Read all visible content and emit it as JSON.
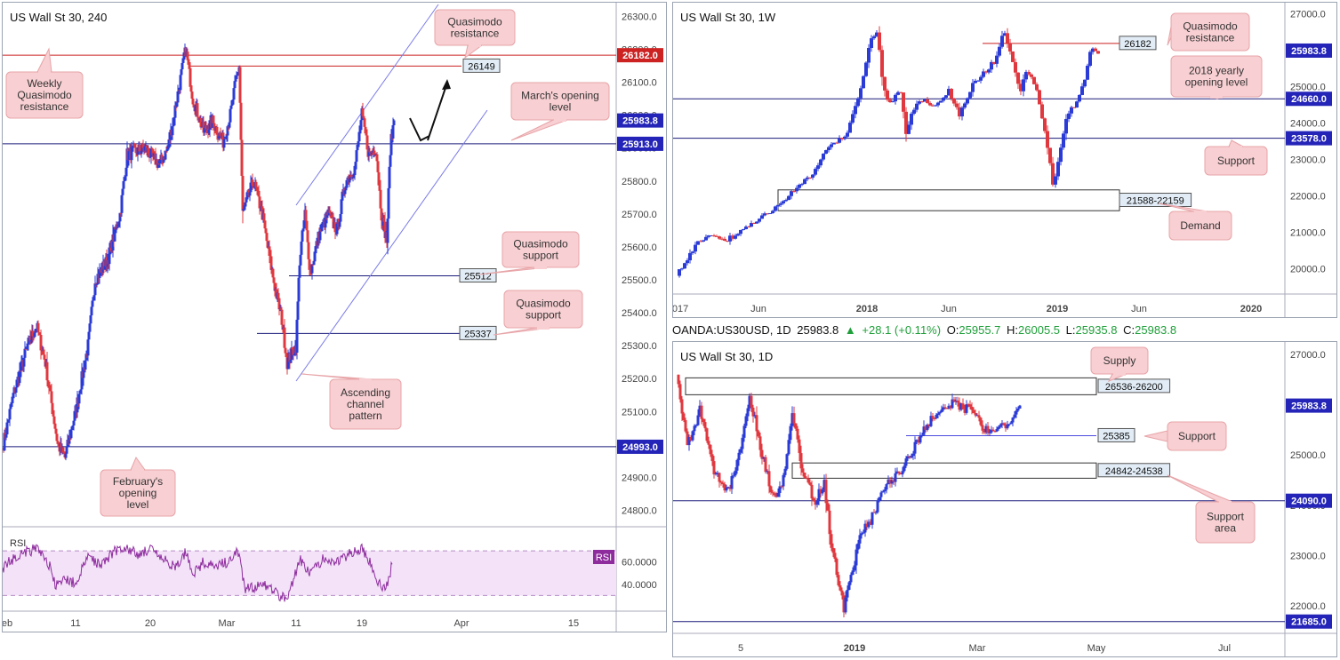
{
  "colors": {
    "up": "#2b3bd6",
    "down": "#e0383f",
    "callout_fill": "#f8cfd2",
    "callout_stroke": "#e7a4a8",
    "blue_line": "#2424b8",
    "red_line": "#cc2222",
    "rsi": "#8e2c9e",
    "rsi_band": "#f3e2f8"
  },
  "chart_data": [
    {
      "type": "candlestick",
      "title": "US Wall St 30, 240",
      "ylim": [
        24750,
        26320
      ],
      "y_ticks": [
        "26300.0",
        "26200.0",
        "26100.0",
        "26000.0",
        "25900.0",
        "25800.0",
        "25700.0",
        "25600.0",
        "25500.0",
        "25400.0",
        "25300.0",
        "25200.0",
        "25100.0",
        "25000.0",
        "24900.0",
        "24800.0"
      ],
      "x_ticks": [
        "eb",
        "11",
        "20",
        "Mar",
        "11",
        "19",
        "Apr",
        "15"
      ],
      "price_labels": [
        {
          "text": "26182.0",
          "value": 26182,
          "style": "red"
        },
        {
          "text": "25983.8",
          "value": 25983.8,
          "style": "blue"
        },
        {
          "text": "25913.0",
          "value": 25913,
          "style": "blue"
        },
        {
          "text": "24993.0",
          "value": 24993,
          "style": "blue"
        }
      ],
      "level_labels": [
        {
          "text": "26149",
          "value": 26149
        },
        {
          "text": "25512",
          "value": 25512
        },
        {
          "text": "25337",
          "value": 25337
        }
      ],
      "annotations": [
        {
          "name": "weekly-quasimodo",
          "lines": [
            "Weekly",
            "Quasimodo",
            "resistance"
          ]
        },
        {
          "name": "quasimodo-resistance",
          "lines": [
            "Quasimodo",
            "resistance"
          ]
        },
        {
          "name": "march-opening",
          "lines": [
            "March's opening",
            "level"
          ]
        },
        {
          "name": "quasimodo-support-1",
          "lines": [
            "Quasimodo",
            "support"
          ]
        },
        {
          "name": "quasimodo-support-2",
          "lines": [
            "Quasimodo",
            "support"
          ]
        },
        {
          "name": "ascending-channel",
          "lines": [
            "Ascending",
            "channel",
            "pattern"
          ]
        },
        {
          "name": "february-opening",
          "lines": [
            "February's",
            "opening",
            "level"
          ]
        }
      ],
      "rsi": {
        "label": "RSI",
        "badge": "RSI",
        "y_ticks": [
          "60.0000",
          "40.0000"
        ],
        "upper": 70,
        "lower": 30
      }
    },
    {
      "type": "candlestick",
      "title": "US Wall St 30, 1W",
      "ylim": [
        19300,
        27300
      ],
      "y_ticks": [
        "27000.0",
        "26000.0",
        "25000.0",
        "24000.0",
        "23000.0",
        "22000.0",
        "21000.0",
        "20000.0"
      ],
      "x_ticks": [
        "017",
        "Jun",
        "2018",
        "Jun",
        "2019",
        "Jun",
        "2020"
      ],
      "price_labels": [
        {
          "text": "25983.8",
          "value": 25983.8,
          "style": "blue"
        },
        {
          "text": "24660.0",
          "value": 24660,
          "style": "blue"
        },
        {
          "text": "23578.0",
          "value": 23578,
          "style": "blue"
        }
      ],
      "level_labels": [
        {
          "text": "26182",
          "value": 26182
        },
        {
          "text": "21588-22159",
          "value": 21873
        }
      ],
      "annotations": [
        {
          "name": "quasimodo-resistance",
          "lines": [
            "Quasimodo",
            "resistance"
          ]
        },
        {
          "name": "yearly-opening",
          "lines": [
            "2018 yearly",
            "opening level"
          ]
        },
        {
          "name": "support",
          "lines": [
            "Support"
          ]
        },
        {
          "name": "demand",
          "lines": [
            "Demand"
          ]
        }
      ]
    },
    {
      "type": "candlestick",
      "title": "US Wall St 30, 1D",
      "ylim": [
        21450,
        27250
      ],
      "y_ticks": [
        "27000.0",
        "26000.0",
        "25000.0",
        "24000.0",
        "23000.0",
        "22000.0"
      ],
      "x_ticks": [
        "5",
        "2019",
        "Mar",
        "May",
        "Jul"
      ],
      "price_labels": [
        {
          "text": "25983.8",
          "value": 25983.8,
          "style": "blue"
        },
        {
          "text": "24090.0",
          "value": 24090,
          "style": "blue"
        },
        {
          "text": "21685.0",
          "value": 21685,
          "style": "blue"
        }
      ],
      "level_labels": [
        {
          "text": "26536-26200",
          "value": 26368
        },
        {
          "text": "25385",
          "value": 25385
        },
        {
          "text": "24842-24538",
          "value": 24690
        }
      ],
      "annotations": [
        {
          "name": "supply",
          "lines": [
            "Supply"
          ]
        },
        {
          "name": "support",
          "lines": [
            "Support"
          ]
        },
        {
          "name": "support-area",
          "lines": [
            "Support",
            "area"
          ]
        }
      ]
    }
  ],
  "ohlc_bar": {
    "symbol": "OANDA:US30USD, 1D",
    "price": "25983.8",
    "arrow": "▲",
    "change": "+28.1 (+0.11%)",
    "o_label": "O:",
    "o": "25955.7",
    "h_label": "H:",
    "h": "26005.5",
    "l_label": "L:",
    "l": "25935.8",
    "c_label": "C:",
    "c": "25983.8"
  }
}
